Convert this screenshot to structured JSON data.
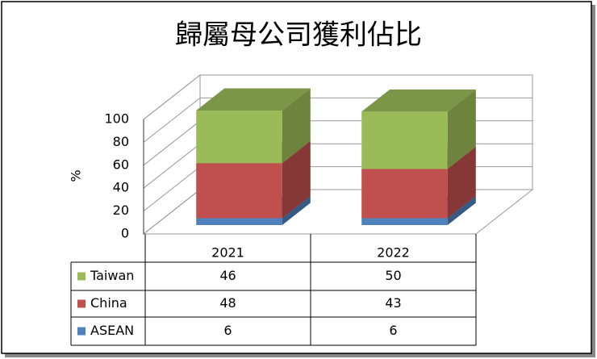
{
  "chart_data": {
    "type": "bar3d_stacked",
    "title": "歸屬母公司獲利佔比",
    "y_label": "%",
    "categories": [
      "2021",
      "2022"
    ],
    "series": [
      {
        "name": "Taiwan",
        "color": "#9bbb59",
        "values": [
          46,
          50
        ]
      },
      {
        "name": "China",
        "color": "#c0504d",
        "values": [
          48,
          43
        ]
      },
      {
        "name": "ASEAN",
        "color": "#4f81bd",
        "values": [
          6,
          6
        ]
      }
    ],
    "ylim": [
      0,
      100
    ],
    "yticks": [
      0,
      20,
      40,
      60,
      80,
      100
    ],
    "grid": true,
    "data_table": true
  }
}
